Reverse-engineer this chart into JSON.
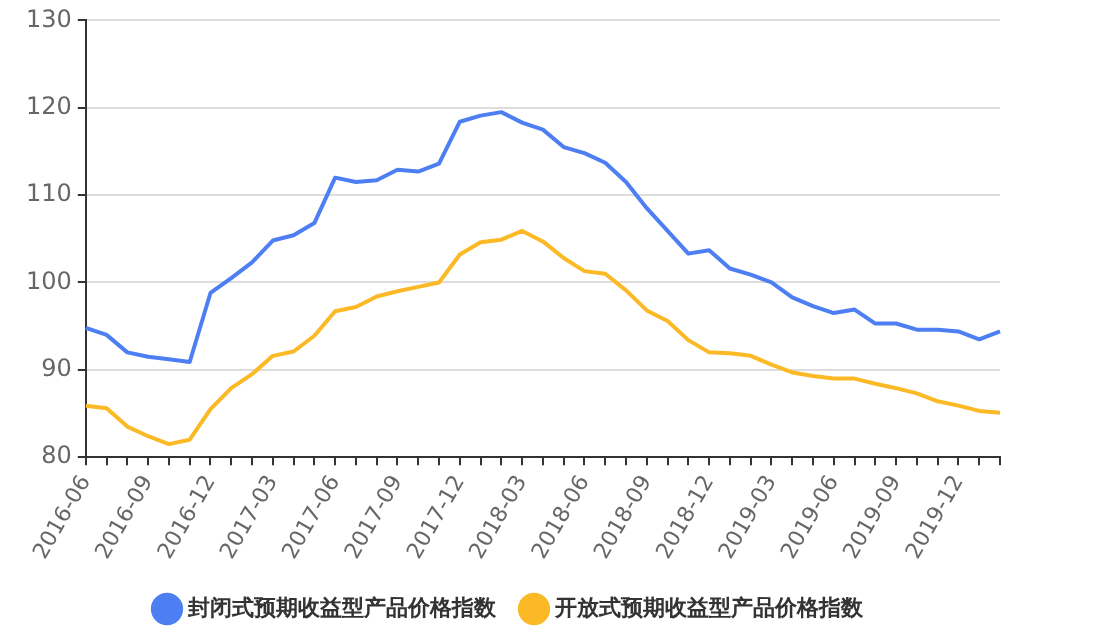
{
  "chart_data": {
    "type": "line",
    "categories": [
      "2016-06",
      null,
      null,
      "2016-09",
      null,
      null,
      "2016-12",
      null,
      null,
      "2017-03",
      null,
      null,
      "2017-06",
      null,
      null,
      "2017-09",
      null,
      null,
      "2017-12",
      null,
      null,
      "2018-03",
      null,
      null,
      "2018-06",
      null,
      null,
      "2018-09",
      null,
      null,
      "2018-12",
      null,
      null,
      "2019-03",
      null,
      null,
      "2019-06",
      null,
      null,
      "2019-09",
      null,
      null,
      "2019-12",
      null,
      null
    ],
    "series": [
      {
        "name": "封闭式预期收益型产品价格指数",
        "color": "#4e7ff2",
        "values": [
          94.8,
          94.0,
          92.0,
          91.5,
          91.2,
          90.9,
          98.8,
          100.5,
          102.3,
          104.8,
          105.4,
          106.8,
          112.0,
          111.5,
          111.7,
          112.9,
          112.7,
          113.6,
          118.4,
          119.1,
          119.5,
          118.3,
          117.5,
          115.5,
          114.8,
          113.7,
          111.5,
          108.5,
          105.9,
          103.3,
          103.7,
          101.6,
          100.9,
          100.0,
          98.3,
          97.3,
          96.5,
          96.9,
          95.3,
          95.3,
          94.6,
          94.6,
          94.4,
          93.5,
          94.4
        ]
      },
      {
        "name": "开放式预期收益型产品价格指数",
        "color": "#fbb925",
        "values": [
          85.9,
          85.6,
          83.5,
          82.4,
          81.5,
          82.0,
          85.5,
          87.9,
          89.5,
          91.6,
          92.1,
          93.9,
          96.7,
          97.2,
          98.4,
          99.0,
          99.5,
          100.0,
          103.2,
          104.6,
          104.9,
          105.9,
          104.7,
          102.8,
          101.3,
          101.0,
          99.1,
          96.8,
          95.6,
          93.4,
          92.0,
          91.9,
          91.6,
          90.6,
          89.7,
          89.3,
          89.0,
          89.0,
          88.4,
          87.9,
          87.3,
          86.4,
          85.9,
          85.3,
          85.1
        ]
      }
    ],
    "ylim": [
      80,
      130
    ],
    "yticks": [
      80,
      90,
      100,
      110,
      120,
      130
    ],
    "grid": true,
    "legend": "bottom",
    "marker": "none",
    "line_style": "solid"
  }
}
